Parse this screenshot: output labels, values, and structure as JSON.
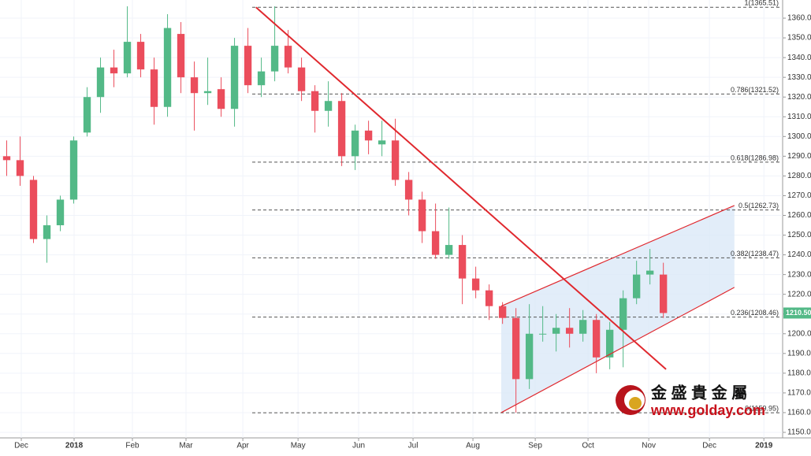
{
  "chart_data": {
    "type": "candlestick",
    "categories": [
      null,
      null,
      null,
      null,
      null,
      null,
      null,
      null,
      null,
      null,
      null,
      null,
      null,
      null,
      null,
      null,
      null,
      null,
      null,
      null,
      null,
      null,
      null,
      null,
      null,
      null,
      null,
      null,
      null,
      null,
      null,
      null,
      null,
      null,
      null,
      null,
      null,
      null,
      null,
      null,
      null,
      null,
      null,
      null,
      null,
      null,
      null,
      null,
      null,
      null
    ],
    "open": [
      1290,
      1288,
      1278,
      1248,
      1255,
      1268,
      1302,
      1320,
      1335,
      1332,
      1348,
      1334,
      1315,
      1352,
      1330,
      1322,
      1324,
      1314,
      1346,
      1326,
      1333,
      1346,
      1335,
      1323,
      1313,
      1318,
      1290,
      1303,
      1296,
      1298,
      1278,
      1268,
      1252,
      1240,
      1245,
      1228,
      1222,
      1214,
      1208,
      1177,
      1200,
      1200,
      1203,
      1200,
      1207,
      1188,
      1202,
      1218,
      1230,
      1230
    ],
    "high": [
      1298,
      1300,
      1280,
      1260,
      1270,
      1300,
      1325,
      1340,
      1344,
      1366,
      1352,
      1340,
      1362,
      1358,
      1338,
      1340,
      1330,
      1350,
      1355,
      1340,
      1366,
      1354,
      1340,
      1326,
      1328,
      1322,
      1306,
      1308,
      1308,
      1309,
      1282,
      1272,
      1266,
      1264,
      1250,
      1234,
      1225,
      1216,
      1213,
      1215,
      1214,
      1210,
      1213,
      1212,
      1210,
      1206,
      1222,
      1237,
      1243,
      1236
    ],
    "low": [
      1280,
      1275,
      1246,
      1236,
      1252,
      1266,
      1300,
      1312,
      1325,
      1330,
      1330,
      1306,
      1310,
      1322,
      1303,
      1316,
      1310,
      1305,
      1322,
      1320,
      1328,
      1332,
      1318,
      1302,
      1305,
      1285,
      1283,
      1291,
      1290,
      1275,
      1260,
      1246,
      1238,
      1238,
      1215,
      1218,
      1207,
      1205,
      1160,
      1172,
      1196,
      1191,
      1193,
      1196,
      1180,
      1182,
      1183,
      1215,
      1225,
      1208
    ],
    "close": [
      1288,
      1280,
      1248,
      1255,
      1268,
      1298,
      1320,
      1335,
      1332,
      1348,
      1334,
      1315,
      1355,
      1330,
      1322,
      1323,
      1314,
      1346,
      1326,
      1333,
      1346,
      1335,
      1323,
      1313,
      1318,
      1290,
      1303,
      1298,
      1298,
      1278,
      1268,
      1252,
      1240,
      1245,
      1228,
      1222,
      1214,
      1208,
      1177,
      1200,
      1200,
      1203,
      1200,
      1207,
      1188,
      1202,
      1218,
      1230,
      1232,
      1210.5
    ],
    "up_color": "#53b987",
    "down_color": "#eb4d5c",
    "xlim": [
      0,
      58.4
    ],
    "xticks": [
      {
        "value": 1.59,
        "label": "Dec"
      },
      {
        "value": 5.53,
        "label": "2018"
      },
      {
        "value": 9.88,
        "label": "Feb"
      },
      {
        "value": 13.88,
        "label": "Mar"
      },
      {
        "value": 18.12,
        "label": "Apr"
      },
      {
        "value": 22.24,
        "label": "May"
      },
      {
        "value": 26.76,
        "label": "Jun"
      },
      {
        "value": 30.82,
        "label": "Jul"
      },
      {
        "value": 35.29,
        "label": "Aug"
      },
      {
        "value": 39.94,
        "label": "Sep"
      },
      {
        "value": 43.88,
        "label": "Oct"
      },
      {
        "value": 48.41,
        "label": "Nov"
      },
      {
        "value": 52.94,
        "label": "Dec"
      },
      {
        "value": 57,
        "label": "2019"
      }
    ],
    "ylim": [
      1147.2,
      1369.2
    ],
    "yticks": [
      {
        "value": 1150,
        "label": "1150.00"
      },
      {
        "value": 1160,
        "label": "1160.00"
      },
      {
        "value": 1170,
        "label": "1170.00"
      },
      {
        "value": 1180,
        "label": "1180.00"
      },
      {
        "value": 1190,
        "label": "1190.00"
      },
      {
        "value": 1200,
        "label": "1200.00"
      },
      {
        "value": 1210,
        "label": "1210.00"
      },
      {
        "value": 1220,
        "label": "1220.00"
      },
      {
        "value": 1230,
        "label": "1230.00"
      },
      {
        "value": 1240,
        "label": "1240.00"
      },
      {
        "value": 1250,
        "label": "1250.00"
      },
      {
        "value": 1260,
        "label": "1260.00"
      },
      {
        "value": 1270,
        "label": "1270.00"
      },
      {
        "value": 1280,
        "label": "1280.00"
      },
      {
        "value": 1290,
        "label": "1290.00"
      },
      {
        "value": 1300,
        "label": "1300.00"
      },
      {
        "value": 1310,
        "label": "1310.00"
      },
      {
        "value": 1320,
        "label": "1320.00"
      },
      {
        "value": 1330,
        "label": "1330.00"
      },
      {
        "value": 1340,
        "label": "1340.00"
      },
      {
        "value": 1350,
        "label": "1350.00"
      },
      {
        "value": 1360,
        "label": "1360.00"
      }
    ],
    "grid": true,
    "fib_levels": [
      {
        "value": 1365.51,
        "label": "1(1365.51)"
      },
      {
        "value": 1321.52,
        "label": "0.786(1321.52)"
      },
      {
        "value": 1286.98,
        "label": "0.618(1286.98)"
      },
      {
        "value": 1262.73,
        "label": "0.5(1262.73)"
      },
      {
        "value": 1238.47,
        "label": "0.382(1238.47)"
      },
      {
        "value": 1208.46,
        "label": "0.236(1208.46)"
      },
      {
        "value": 1159.95,
        "label": "0(1159.95)"
      }
    ],
    "trendline": {
      "x": [
        19.1,
        49.7
      ],
      "y": [
        1365.51,
        1182
      ],
      "color": "#e0282e"
    },
    "channel": {
      "x": [
        37.4,
        54.8
      ],
      "lower": [
        1160,
        1223.5
      ],
      "upper": [
        1214,
        1265
      ],
      "color": "#e0282e",
      "fill": "#dbe8f7"
    },
    "last_price": {
      "value": 1210.5,
      "label": "1210.50",
      "color": "#53b987"
    },
    "watermark": {
      "name": "金 盛 貴 金 屬",
      "url": "www.golday.com"
    }
  }
}
